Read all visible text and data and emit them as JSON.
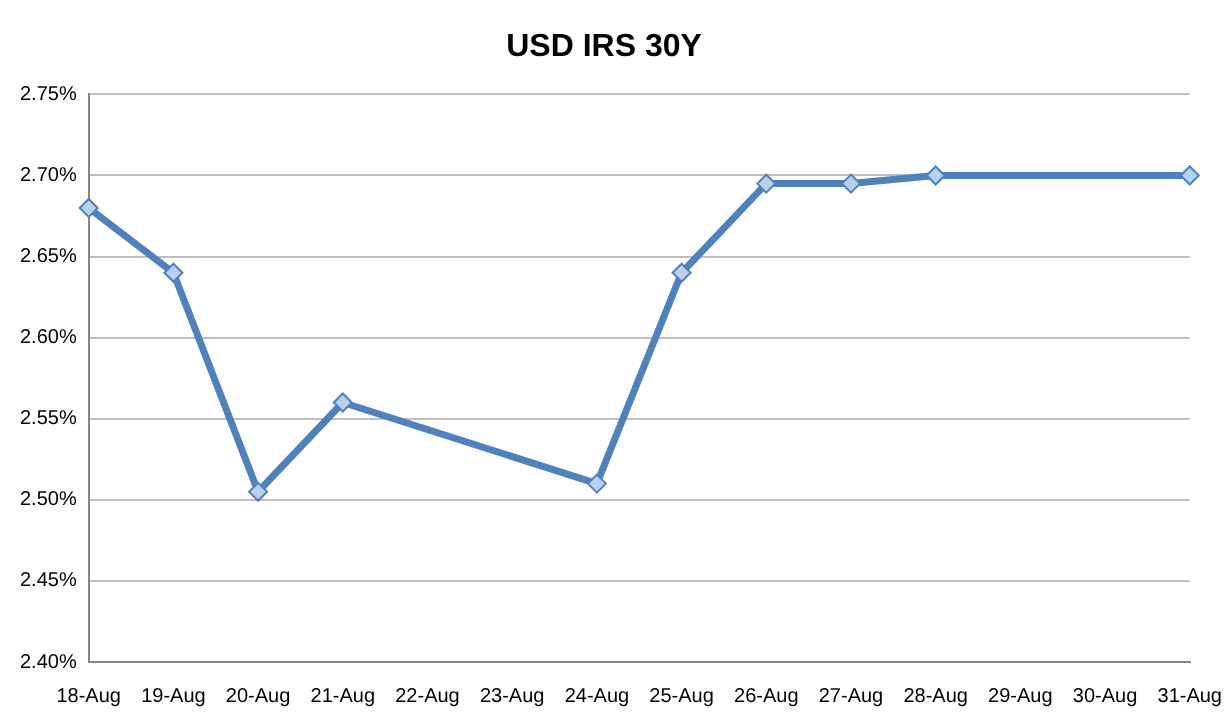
{
  "chart_data": {
    "type": "line",
    "title": "USD IRS 30Y",
    "categories": [
      "18-Aug",
      "19-Aug",
      "20-Aug",
      "21-Aug",
      "22-Aug",
      "23-Aug",
      "24-Aug",
      "25-Aug",
      "26-Aug",
      "27-Aug",
      "28-Aug",
      "29-Aug",
      "30-Aug",
      "31-Aug"
    ],
    "series": [
      {
        "color": "#4f81bd",
        "values": [
          2.68,
          2.64,
          2.505,
          2.56,
          null,
          null,
          2.51,
          2.64,
          2.695,
          2.695,
          2.7,
          null,
          null,
          2.7
        ]
      }
    ],
    "ylim": [
      2.4,
      2.75
    ],
    "yticks": [
      {
        "value": 2.4,
        "label": "2.40%"
      },
      {
        "value": 2.45,
        "label": "2.45%"
      },
      {
        "value": 2.5,
        "label": "2.50%"
      },
      {
        "value": 2.55,
        "label": "2.55%"
      },
      {
        "value": 2.6,
        "label": "2.60%"
      },
      {
        "value": 2.65,
        "label": "2.65%"
      },
      {
        "value": 2.7,
        "label": "2.70%"
      },
      {
        "value": 2.75,
        "label": "2.75%"
      }
    ],
    "grid": "y",
    "legend": false,
    "marker": "diamond",
    "line_style": "solid"
  }
}
